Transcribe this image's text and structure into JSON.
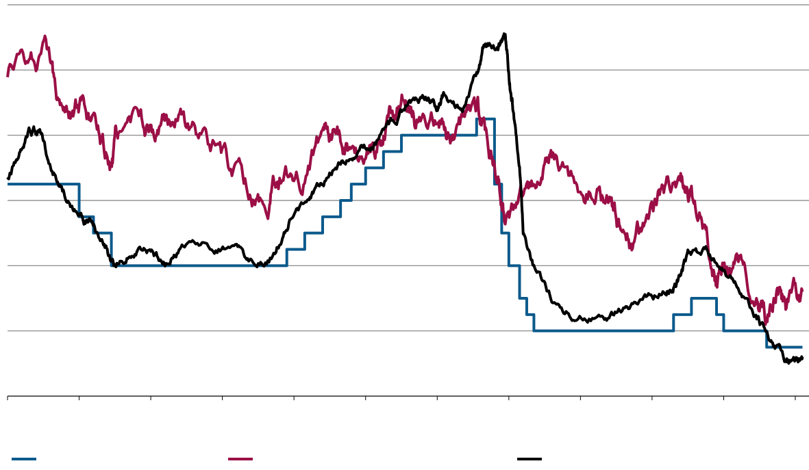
{
  "chart_data": {
    "type": "line",
    "title": "",
    "xlabel": "",
    "ylabel": "",
    "x_tick_count": 12,
    "y_gridlines": 6,
    "ylim": [
      0,
      6
    ],
    "grid": true,
    "legend_position": "bottom",
    "series": [
      {
        "name": "",
        "color": "#0b5a8c",
        "step": true,
        "points": [
          [
            0,
            3.25
          ],
          [
            1.0,
            3.25
          ],
          [
            1.0,
            2.75
          ],
          [
            1.2,
            2.75
          ],
          [
            1.2,
            2.5
          ],
          [
            1.45,
            2.5
          ],
          [
            1.45,
            2.0
          ],
          [
            3.9,
            2.0
          ],
          [
            3.9,
            2.25
          ],
          [
            4.15,
            2.25
          ],
          [
            4.15,
            2.5
          ],
          [
            4.4,
            2.5
          ],
          [
            4.4,
            2.75
          ],
          [
            4.65,
            2.75
          ],
          [
            4.65,
            3.0
          ],
          [
            4.8,
            3.0
          ],
          [
            4.8,
            3.25
          ],
          [
            5.0,
            3.25
          ],
          [
            5.0,
            3.5
          ],
          [
            5.25,
            3.5
          ],
          [
            5.25,
            3.75
          ],
          [
            5.5,
            3.75
          ],
          [
            5.5,
            4.0
          ],
          [
            6.55,
            4.0
          ],
          [
            6.55,
            4.25
          ],
          [
            6.8,
            4.25
          ],
          [
            6.8,
            3.25
          ],
          [
            6.9,
            3.25
          ],
          [
            6.9,
            2.5
          ],
          [
            7.0,
            2.5
          ],
          [
            7.0,
            2.0
          ],
          [
            7.15,
            2.0
          ],
          [
            7.15,
            1.5
          ],
          [
            7.25,
            1.5
          ],
          [
            7.25,
            1.25
          ],
          [
            7.35,
            1.25
          ],
          [
            7.35,
            1.0
          ],
          [
            9.3,
            1.0
          ],
          [
            9.3,
            1.25
          ],
          [
            9.55,
            1.25
          ],
          [
            9.55,
            1.5
          ],
          [
            9.9,
            1.5
          ],
          [
            9.9,
            1.25
          ],
          [
            10.0,
            1.25
          ],
          [
            10.0,
            1.0
          ],
          [
            10.6,
            1.0
          ],
          [
            10.6,
            0.75
          ],
          [
            11.1,
            0.75
          ]
        ]
      },
      {
        "name": "",
        "color": "#9b0f46",
        "points": [
          [
            0,
            5.0
          ],
          [
            0.3,
            5.25
          ],
          [
            0.55,
            5.2
          ],
          [
            0.7,
            4.7
          ],
          [
            0.9,
            4.45
          ],
          [
            1.05,
            4.25
          ],
          [
            1.25,
            4.0
          ],
          [
            1.45,
            3.55
          ],
          [
            1.55,
            4.1
          ],
          [
            1.85,
            4.3
          ],
          [
            2.05,
            4.0
          ],
          [
            2.25,
            4.3
          ],
          [
            2.5,
            4.15
          ],
          [
            2.8,
            3.8
          ],
          [
            3.1,
            3.5
          ],
          [
            3.4,
            3.15
          ],
          [
            3.65,
            3.0
          ],
          [
            3.8,
            3.4
          ],
          [
            4.1,
            3.35
          ],
          [
            4.4,
            4.0
          ],
          [
            4.55,
            4.1
          ],
          [
            4.75,
            3.8
          ],
          [
            5.0,
            3.7
          ],
          [
            5.2,
            3.9
          ],
          [
            5.35,
            4.2
          ],
          [
            5.55,
            4.6
          ],
          [
            5.7,
            4.3
          ],
          [
            6.0,
            4.25
          ],
          [
            6.15,
            3.9
          ],
          [
            6.35,
            4.25
          ],
          [
            6.55,
            4.45
          ],
          [
            6.7,
            4.0
          ],
          [
            6.85,
            3.5
          ],
          [
            6.95,
            2.9
          ],
          [
            7.15,
            3.0
          ],
          [
            7.4,
            3.2
          ],
          [
            7.6,
            3.6
          ],
          [
            7.9,
            3.35
          ],
          [
            8.2,
            3.15
          ],
          [
            8.4,
            3.0
          ],
          [
            8.55,
            2.6
          ],
          [
            8.75,
            2.25
          ],
          [
            8.95,
            2.8
          ],
          [
            9.15,
            3.2
          ],
          [
            9.4,
            3.3
          ],
          [
            9.55,
            2.95
          ],
          [
            9.75,
            2.5
          ],
          [
            9.9,
            1.75
          ],
          [
            10.05,
            2.0
          ],
          [
            10.25,
            1.95
          ],
          [
            10.45,
            1.5
          ],
          [
            10.6,
            1.25
          ],
          [
            10.75,
            1.5
          ],
          [
            10.9,
            1.35
          ],
          [
            11.1,
            1.6
          ]
        ]
      },
      {
        "name": "",
        "color": "#000000",
        "points": [
          [
            0,
            3.4
          ],
          [
            0.15,
            3.65
          ],
          [
            0.3,
            4.1
          ],
          [
            0.45,
            4.0
          ],
          [
            0.6,
            3.6
          ],
          [
            0.8,
            3.1
          ],
          [
            1.0,
            2.8
          ],
          [
            1.15,
            2.65
          ],
          [
            1.35,
            2.3
          ],
          [
            1.5,
            1.95
          ],
          [
            1.75,
            2.25
          ],
          [
            2.0,
            2.2
          ],
          [
            2.2,
            2.0
          ],
          [
            2.45,
            2.35
          ],
          [
            2.85,
            2.3
          ],
          [
            3.2,
            2.25
          ],
          [
            3.45,
            2.0
          ],
          [
            3.75,
            2.2
          ],
          [
            3.95,
            2.7
          ],
          [
            4.2,
            3.0
          ],
          [
            4.4,
            3.3
          ],
          [
            4.65,
            3.6
          ],
          [
            4.9,
            3.8
          ],
          [
            5.1,
            3.8
          ],
          [
            5.35,
            4.15
          ],
          [
            5.6,
            4.5
          ],
          [
            5.85,
            4.55
          ],
          [
            6.0,
            4.45
          ],
          [
            6.1,
            4.7
          ],
          [
            6.35,
            4.35
          ],
          [
            6.55,
            4.95
          ],
          [
            6.65,
            5.35
          ],
          [
            6.85,
            5.35
          ],
          [
            6.95,
            5.5
          ],
          [
            7.0,
            5.0
          ],
          [
            7.05,
            4.5
          ],
          [
            7.15,
            3.5
          ],
          [
            7.2,
            2.5
          ],
          [
            7.35,
            1.95
          ],
          [
            7.6,
            1.5
          ],
          [
            7.9,
            1.25
          ],
          [
            8.3,
            1.25
          ],
          [
            8.6,
            1.3
          ],
          [
            8.9,
            1.45
          ],
          [
            9.2,
            1.6
          ],
          [
            9.35,
            1.75
          ],
          [
            9.5,
            2.2
          ],
          [
            9.75,
            2.2
          ],
          [
            10.0,
            2.0
          ],
          [
            10.2,
            1.65
          ],
          [
            10.45,
            1.25
          ],
          [
            10.65,
            0.85
          ],
          [
            10.85,
            0.6
          ],
          [
            11.0,
            0.55
          ],
          [
            11.1,
            0.6
          ]
        ]
      }
    ]
  }
}
